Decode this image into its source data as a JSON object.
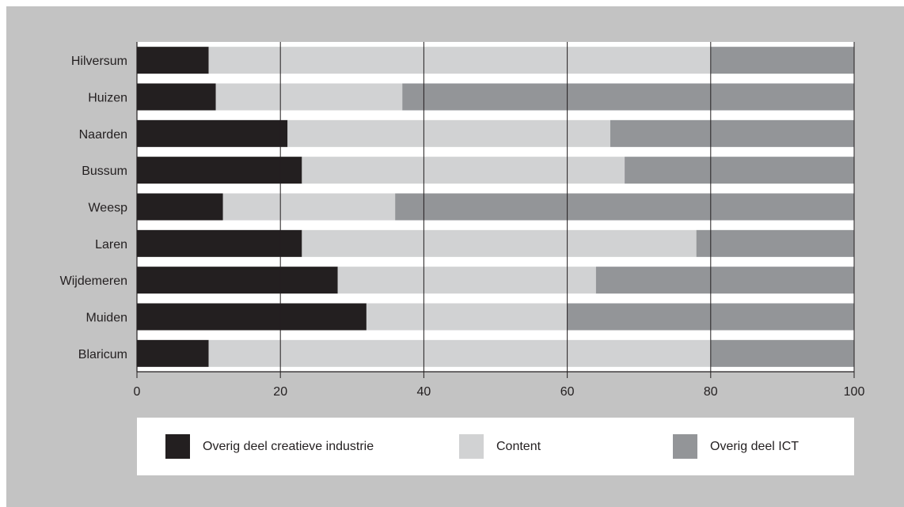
{
  "chart_data": {
    "type": "bar",
    "orientation": "horizontal",
    "stacked": true,
    "categories": [
      "Hilversum",
      "Huizen",
      "Naarden",
      "Bussum",
      "Weesp",
      "Laren",
      "Wijdemeren",
      "Muiden",
      "Blaricum"
    ],
    "series": [
      {
        "name": "Overig deel creatieve industrie",
        "color": "#231f20",
        "values": [
          10,
          11,
          21,
          23,
          12,
          23,
          28,
          32,
          10
        ]
      },
      {
        "name": "Content",
        "color": "#d1d2d3",
        "values": [
          70,
          26,
          45,
          45,
          24,
          55,
          36,
          28,
          70
        ]
      },
      {
        "name": "Overig deel ICT",
        "color": "#939598",
        "values": [
          20,
          63,
          34,
          32,
          64,
          22,
          36,
          40,
          20
        ]
      }
    ],
    "xlim": [
      0,
      100
    ],
    "xticks": [
      0,
      20,
      40,
      60,
      80,
      100
    ],
    "grid": true,
    "legend_position": "bottom",
    "title": "",
    "xlabel": "",
    "ylabel": ""
  },
  "colors": {
    "frame_background": "#c3c3c3",
    "plot_background": "#ffffff",
    "gridline": "#231f20"
  }
}
